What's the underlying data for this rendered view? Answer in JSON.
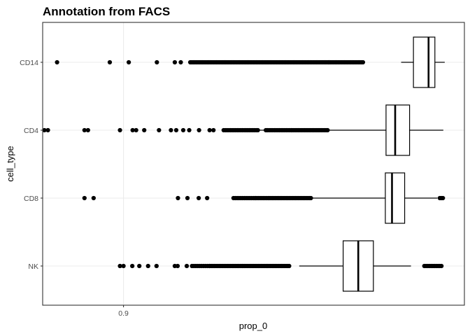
{
  "chart_data": {
    "type": "boxplot",
    "orientation": "horizontal",
    "title": "Annotation from FACS",
    "xlabel": "prop_0",
    "ylabel": "cell_type",
    "x_ticks": [
      {
        "value": 0.9,
        "label": "0.9"
      }
    ],
    "xlim": [
      0.877,
      0.997
    ],
    "grid": true,
    "categories": [
      "CD14",
      "CD4",
      "CD8",
      "NK"
    ],
    "boxes": [
      {
        "name": "CD14",
        "whisker_low": 0.979,
        "q1": 0.9825,
        "median": 0.9868,
        "q3": 0.9886,
        "whisker_high": 0.9914
      },
      {
        "name": "CD4",
        "whisker_low": 0.935,
        "q1": 0.9747,
        "median": 0.9773,
        "q3": 0.9814,
        "whisker_high": 0.991
      },
      {
        "name": "CD8",
        "whisker_low": 0.95,
        "q1": 0.9745,
        "median": 0.9764,
        "q3": 0.98,
        "whisker_high": 0.9893
      },
      {
        "name": "NK",
        "whisker_low": 0.95,
        "q1": 0.9625,
        "median": 0.9668,
        "q3": 0.9711,
        "whisker_high": 0.9818
      }
    ],
    "outliers": {
      "CD14": {
        "points": [
          0.8811,
          0.8961,
          0.9015,
          0.9095,
          0.9146,
          0.9163
        ],
        "bands": [
          [
            0.919,
            0.9365,
            1
          ],
          [
            0.9365,
            0.9585,
            1
          ],
          [
            0.9585,
            0.9685,
            1
          ]
        ]
      },
      "CD4": {
        "points": [
          0.8775,
          0.8785,
          0.8889,
          0.8899,
          0.899,
          0.9026,
          0.9036,
          0.9059,
          0.9101,
          0.9135,
          0.915,
          0.917,
          0.9187,
          0.9215,
          0.9245,
          0.9256
        ],
        "bands": [
          [
            0.9285,
            0.9385,
            0.9
          ],
          [
            0.9405,
            0.948,
            0.9
          ],
          [
            0.948,
            0.9585,
            1
          ]
        ]
      },
      "CD8": {
        "points": [
          0.8889,
          0.8915,
          0.9155,
          0.9182,
          0.9214,
          0.9238
        ],
        "bands": [
          [
            0.9313,
            0.9375,
            0.85
          ],
          [
            0.9375,
            0.9415,
            0.95
          ],
          [
            0.9415,
            0.9535,
            1
          ],
          [
            0.99,
            0.9913,
            1
          ]
        ]
      },
      "NK": {
        "points": [
          0.899,
          0.9,
          0.9025,
          0.9045,
          0.907,
          0.9094,
          0.9146,
          0.9154,
          0.918
        ],
        "bands": [
          [
            0.9195,
            0.9245,
            0.8
          ],
          [
            0.9245,
            0.934,
            0.95
          ],
          [
            0.934,
            0.9475,
            1
          ],
          [
            0.9856,
            0.9908,
            0.9
          ]
        ]
      }
    }
  }
}
